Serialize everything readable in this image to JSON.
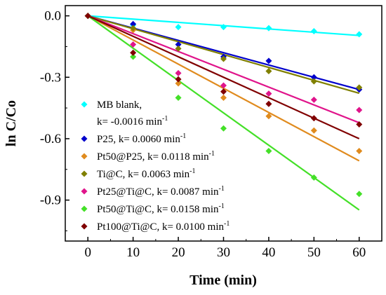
{
  "chart_data": {
    "type": "scatter",
    "xlabel": "Time (min)",
    "ylabel": "ln C/Co",
    "xlim": [
      -5,
      65
    ],
    "ylim": [
      -1.1,
      0.05
    ],
    "x_ticks": [
      0,
      10,
      20,
      30,
      40,
      50,
      60
    ],
    "x_tick_labels": [
      "0",
      "10",
      "20",
      "30",
      "40",
      "50",
      "60"
    ],
    "y_ticks": [
      0.0,
      -0.3,
      -0.6,
      -0.9
    ],
    "y_tick_labels": [
      "0.0",
      "-0.3",
      "-0.6",
      "-0.9"
    ],
    "grid": false,
    "legend_position": "bottom-left",
    "marker": "diamond",
    "fit_lines": true,
    "x": [
      0,
      10,
      20,
      30,
      40,
      50,
      60
    ],
    "series": [
      {
        "name": "MB blank,",
        "name_line2": "k= -0.0016 min",
        "name_sup": "-1",
        "color": "#00ffff",
        "values": [
          0,
          -0.045,
          -0.055,
          -0.055,
          -0.06,
          -0.075,
          -0.09
        ],
        "slope": -0.0016
      },
      {
        "name": "P25, k= 0.0060 min",
        "name_sup": "-1",
        "color": "#0000cc",
        "values": [
          0,
          -0.04,
          -0.14,
          -0.2,
          -0.22,
          -0.3,
          -0.36
        ],
        "slope": -0.006
      },
      {
        "name": "Pt50@P25, k= 0.0118 min",
        "name_sup": "-1",
        "color": "#e08b1e",
        "values": [
          0,
          -0.07,
          -0.33,
          -0.4,
          -0.49,
          -0.56,
          -0.66
        ],
        "slope": -0.0118
      },
      {
        "name": "Ti@C, k= 0.0063 min",
        "name_sup": "-1",
        "color": "#808000",
        "values": [
          0,
          -0.06,
          -0.16,
          -0.21,
          -0.27,
          -0.32,
          -0.35
        ],
        "slope": -0.0063
      },
      {
        "name": "Pt25@Ti@C, k= 0.0087 min",
        "name_sup": "-1",
        "color": "#e0148b",
        "values": [
          0,
          -0.14,
          -0.28,
          -0.34,
          -0.38,
          -0.41,
          -0.46
        ],
        "slope": -0.0087
      },
      {
        "name": "Pt50@Ti@C, k= 0.0158 min",
        "name_sup": "-1",
        "color": "#44e028",
        "values": [
          0,
          -0.2,
          -0.4,
          -0.55,
          -0.66,
          -0.79,
          -0.87
        ],
        "slope": -0.0158
      },
      {
        "name": "Pt100@Ti@C, k= 0.0100 min",
        "name_sup": "-1",
        "color": "#800000",
        "values": [
          0,
          -0.18,
          -0.31,
          -0.37,
          -0.43,
          -0.5,
          -0.53
        ],
        "slope": -0.01
      }
    ]
  }
}
